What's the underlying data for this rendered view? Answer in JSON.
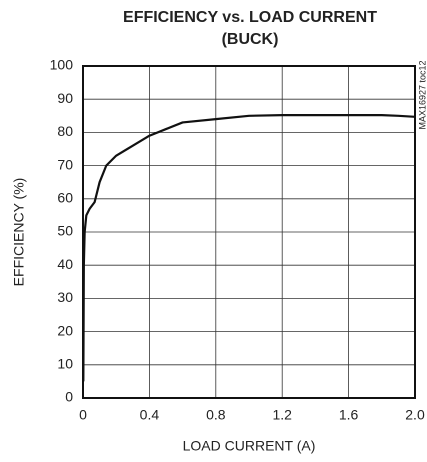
{
  "chart_data": {
    "type": "line",
    "title": "EFFICIENCY vs. LOAD CURRENT",
    "subtitle": "(BUCK)",
    "x_label": "LOAD CURRENT (A)",
    "y_label": "EFFICIENCY (%)",
    "annotation": "MAX16927 toc12",
    "xlim": [
      0,
      2
    ],
    "ylim": [
      0,
      100
    ],
    "xticks": [
      0,
      0.4,
      0.8,
      1.2,
      1.6,
      {
        "value": 2,
        "label": "2.0"
      }
    ],
    "yticks": [
      0,
      10,
      20,
      30,
      40,
      50,
      60,
      70,
      80,
      90,
      100
    ],
    "grid": true,
    "series": [
      {
        "color": "#111111",
        "x": [
          0.002,
          0.005,
          0.01,
          0.02,
          0.04,
          0.07,
          0.1,
          0.14,
          0.2,
          0.3,
          0.4,
          0.5,
          0.6,
          0.8,
          1.0,
          1.2,
          1.4,
          1.6,
          1.8,
          1.9,
          2.0
        ],
        "values": [
          5,
          40,
          50,
          55,
          57,
          59,
          65,
          70,
          73,
          76,
          79,
          81,
          83,
          84,
          85,
          85.2,
          85.2,
          85.2,
          85.2,
          85,
          84.7
        ]
      }
    ]
  }
}
